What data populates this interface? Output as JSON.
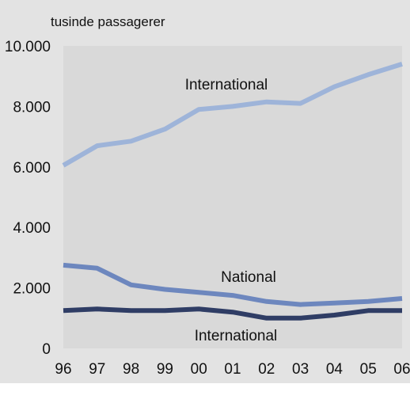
{
  "chart_data": {
    "type": "line",
    "title": "",
    "unit_label": "tusinde passagerer",
    "xlabel": "",
    "ylabel": "",
    "categories": [
      "96",
      "97",
      "98",
      "99",
      "00",
      "01",
      "02",
      "03",
      "04",
      "05",
      "06"
    ],
    "ylim": [
      0,
      10000
    ],
    "y_ticks": [
      0,
      2000,
      4000,
      6000,
      8000,
      10000
    ],
    "y_tick_labels": [
      "0",
      "2.000",
      "4.000",
      "6.000",
      "8.000",
      "10.000"
    ],
    "grid": false,
    "legend": "none",
    "series": [
      {
        "name": "International",
        "color": "#9eb4d9",
        "values": [
          6050,
          6700,
          6850,
          7250,
          7900,
          8000,
          8150,
          8100,
          8650,
          9050,
          9400
        ]
      },
      {
        "name": "National",
        "color": "#6d87be",
        "values": [
          2750,
          2650,
          2100,
          1950,
          1850,
          1750,
          1550,
          1450,
          1500,
          1550,
          1650
        ]
      },
      {
        "name": "International",
        "color": "#2f3d65",
        "values": [
          1250,
          1300,
          1250,
          1250,
          1300,
          1200,
          1000,
          1000,
          1100,
          1250,
          1250
        ]
      }
    ]
  }
}
